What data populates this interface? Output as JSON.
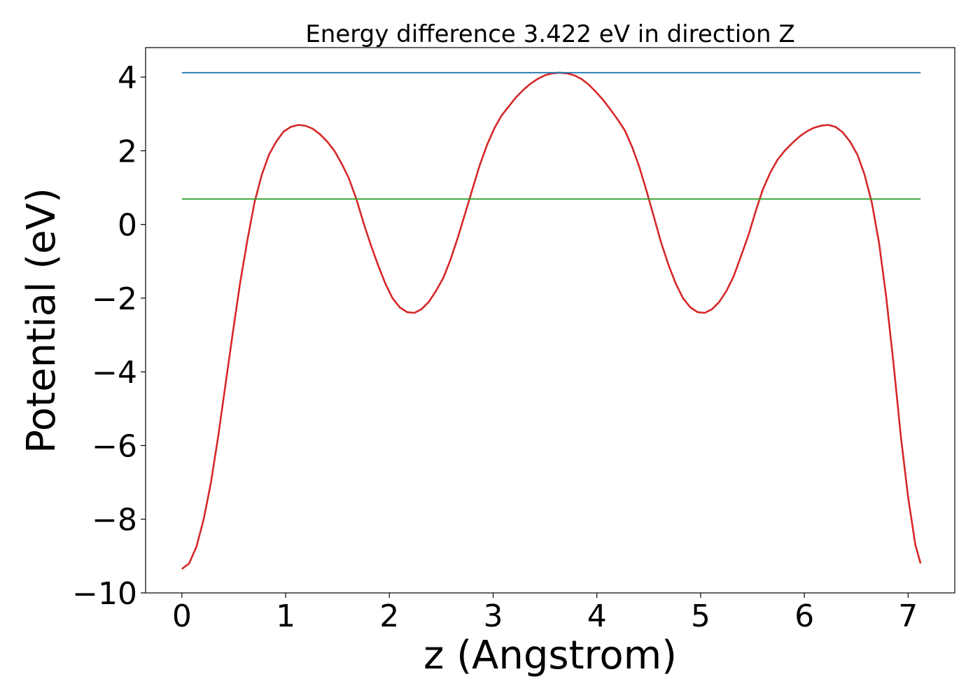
{
  "chart_data": {
    "type": "line",
    "title": "Energy difference 3.422 eV in direction Z",
    "xlabel": "z (Angstrom)",
    "ylabel": "Potential (eV)",
    "xlim": [
      -0.35,
      7.45
    ],
    "ylim": [
      -10.0,
      4.8
    ],
    "xticks": [
      0,
      1,
      2,
      3,
      4,
      5,
      6,
      7
    ],
    "xtick_labels": [
      "0",
      "1",
      "2",
      "3",
      "4",
      "5",
      "6",
      "7"
    ],
    "yticks": [
      4,
      2,
      0,
      -2,
      -4,
      -6,
      -8,
      -10
    ],
    "ytick_labels": [
      "4",
      "2",
      "0",
      "−2",
      "−4",
      "−6",
      "−8",
      "−10"
    ],
    "grid": false,
    "legend": "none",
    "series": [
      {
        "color": "#d62728",
        "x": [
          0.0,
          0.07,
          0.14,
          0.21,
          0.28,
          0.35,
          0.42,
          0.49,
          0.56,
          0.63,
          0.7,
          0.77,
          0.84,
          0.91,
          0.98,
          1.05,
          1.12,
          1.19,
          1.26,
          1.33,
          1.4,
          1.47,
          1.54,
          1.61,
          1.68,
          1.75,
          1.82,
          1.89,
          1.96,
          2.03,
          2.1,
          2.17,
          2.24,
          2.31,
          2.38,
          2.45,
          2.52,
          2.59,
          2.66,
          2.73,
          2.8,
          2.87,
          2.94,
          3.01,
          3.08,
          3.15,
          3.22,
          3.29,
          3.36,
          3.43,
          3.5,
          3.57,
          3.64,
          3.71,
          3.78,
          3.85,
          3.92,
          3.99,
          4.06,
          4.13,
          4.2,
          4.27,
          4.34,
          4.41,
          4.48,
          4.55,
          4.62,
          4.69,
          4.76,
          4.83,
          4.9,
          4.97,
          5.04,
          5.11,
          5.18,
          5.25,
          5.32,
          5.39,
          5.46,
          5.53,
          5.6,
          5.67,
          5.74,
          5.81,
          5.88,
          5.95,
          6.02,
          6.09,
          6.16,
          6.23,
          6.3,
          6.37,
          6.44,
          6.51,
          6.58,
          6.65,
          6.72,
          6.79,
          6.86,
          6.93,
          7.0,
          7.07,
          7.12
        ],
        "y": [
          -9.35,
          -9.2,
          -8.75,
          -8.0,
          -7.0,
          -5.75,
          -4.35,
          -2.95,
          -1.6,
          -0.45,
          0.6,
          1.35,
          1.9,
          2.25,
          2.52,
          2.65,
          2.7,
          2.68,
          2.6,
          2.45,
          2.25,
          2.0,
          1.65,
          1.25,
          0.7,
          0.05,
          -0.55,
          -1.1,
          -1.6,
          -2.0,
          -2.25,
          -2.38,
          -2.4,
          -2.3,
          -2.1,
          -1.8,
          -1.45,
          -0.95,
          -0.35,
          0.3,
          0.95,
          1.6,
          2.15,
          2.6,
          2.95,
          3.2,
          3.45,
          3.65,
          3.82,
          3.95,
          4.05,
          4.1,
          4.12,
          4.1,
          4.05,
          3.95,
          3.8,
          3.6,
          3.38,
          3.12,
          2.85,
          2.55,
          2.1,
          1.55,
          0.9,
          0.2,
          -0.5,
          -1.1,
          -1.6,
          -2.0,
          -2.25,
          -2.38,
          -2.4,
          -2.3,
          -2.1,
          -1.8,
          -1.4,
          -0.85,
          -0.3,
          0.35,
          0.95,
          1.4,
          1.75,
          2.0,
          2.2,
          2.38,
          2.52,
          2.62,
          2.68,
          2.7,
          2.65,
          2.5,
          2.25,
          1.9,
          1.35,
          0.6,
          -0.5,
          -2.0,
          -3.8,
          -5.75,
          -7.4,
          -8.7,
          -9.2
        ]
      },
      {
        "color": "#1f77b4",
        "x": [
          0.0,
          7.12
        ],
        "y": [
          4.12,
          4.12
        ]
      },
      {
        "color": "#2ca02c",
        "x": [
          0.0,
          7.12
        ],
        "y": [
          0.69,
          0.69
        ]
      }
    ]
  }
}
